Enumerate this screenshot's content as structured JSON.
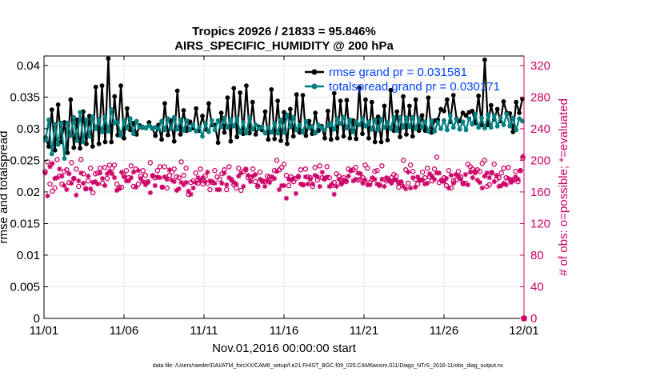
{
  "chart_data": {
    "type": "line",
    "title": "Tropics 20926 / 21833 = 95.846%",
    "subtitle": "AIRS_SPECIFIC_HUMIDITY @ 200 hPa",
    "xlabel": "Nov.01,2016 00:00:00 start",
    "ylabel": "rmse and totalspread",
    "ylabel_right": "# of obs: o=possible; *=evaluated",
    "footnote": "data file: /Users/raeder/DAI/ATM_forcXX/CAM6_setup/f.e21.FHIST_BGC.f09_025.CAM6assim.011/Diags_NTrS_2016-11/obs_diag_output.nc",
    "xlim": [
      0,
      30
    ],
    "ylim": [
      0,
      0.0415
    ],
    "ylim_right": [
      0,
      332
    ],
    "xticks": [
      0,
      5,
      10,
      15,
      20,
      25,
      30
    ],
    "xtick_labels": [
      "11/01",
      "11/06",
      "11/11",
      "11/16",
      "11/21",
      "11/26",
      "12/01"
    ],
    "yticks": [
      0,
      0.005,
      0.01,
      0.015,
      0.02,
      0.025,
      0.03,
      0.035,
      0.04
    ],
    "ytick_labels": [
      "0",
      "0.005",
      "0.01",
      "0.015",
      "0.02",
      "0.025",
      "0.03",
      "0.035",
      "0.04"
    ],
    "yticks_right": [
      0,
      40,
      80,
      120,
      160,
      200,
      240,
      280,
      320
    ],
    "ytick_labels_right": [
      "0",
      "40",
      "80",
      "120",
      "160",
      "200",
      "240",
      "280",
      "320"
    ],
    "legend_position": "top-right",
    "colors": {
      "rmse": "#000000",
      "totalspread": "#008080",
      "obs": "#cc0066",
      "legend_text": "#0044ff"
    },
    "series": [
      {
        "name": "rmse grand pr = 0.031581",
        "axis": "left",
        "style": "line-dot",
        "values": [
          0.0286,
          0.0272,
          0.033,
          0.0266,
          0.0338,
          0.0279,
          0.031,
          0.0262,
          0.0346,
          0.027,
          0.0314,
          0.0269,
          0.0327,
          0.0276,
          0.032,
          0.0272,
          0.0366,
          0.0276,
          0.0368,
          0.0279,
          0.0411,
          0.0279,
          0.0351,
          0.029,
          0.0368,
          0.0285,
          0.0332,
          0.0298,
          0.0309,
          0.0291,
          0.0305,
          0.0302,
          0.0301,
          0.031,
          0.0301,
          0.0289,
          0.0306,
          0.0283,
          0.034,
          0.029,
          0.0313,
          0.028,
          0.036,
          0.0291,
          0.0329,
          0.0297,
          0.0311,
          0.0301,
          0.0332,
          0.0297,
          0.032,
          0.0299,
          0.034,
          0.0306,
          0.0306,
          0.0278,
          0.0325,
          0.0294,
          0.0349,
          0.028,
          0.0364,
          0.0287,
          0.0357,
          0.0292,
          0.0368,
          0.0293,
          0.0342,
          0.0291,
          0.0303,
          0.0298,
          0.0327,
          0.0283,
          0.0362,
          0.0284,
          0.0344,
          0.0281,
          0.0326,
          0.0276,
          0.0331,
          0.0288,
          0.0354,
          0.0294,
          0.0353,
          0.0289,
          0.0312,
          0.0292,
          0.0325,
          0.0297,
          0.0304,
          0.0285,
          0.0328,
          0.0283,
          0.0356,
          0.0285,
          0.0344,
          0.0288,
          0.0345,
          0.0285,
          0.0313,
          0.0284,
          0.0365,
          0.0292,
          0.0346,
          0.0285,
          0.0342,
          0.0279,
          0.0319,
          0.0279,
          0.0336,
          0.0282,
          0.0361,
          0.0297,
          0.0327,
          0.0287,
          0.0351,
          0.0291,
          0.0336,
          0.0288,
          0.0346,
          0.0297,
          0.0321,
          0.0297,
          0.0349,
          0.0294,
          0.0313,
          0.0314,
          0.0331,
          0.0328,
          0.0346,
          0.0311,
          0.0353,
          0.0316,
          0.0312,
          0.0325,
          0.0321,
          0.0326,
          0.0328,
          0.0309,
          0.0352,
          0.0306,
          0.0409,
          0.0306,
          0.0337,
          0.0315,
          0.0331,
          0.0312,
          0.0343,
          0.0325,
          0.0324,
          0.0295,
          0.0342,
          0.0325,
          0.0347
        ]
      },
      {
        "name": "totalspread grand pr = 0.030171",
        "axis": "left",
        "style": "line-dot",
        "values": [
          0.0282,
          0.0314,
          0.026,
          0.0307,
          0.0275,
          0.0309,
          0.0253,
          0.0309,
          0.0289,
          0.0318,
          0.0281,
          0.0326,
          0.0279,
          0.0314,
          0.0288,
          0.0319,
          0.03,
          0.0314,
          0.0295,
          0.0319,
          0.0296,
          0.033,
          0.0309,
          0.031,
          0.0289,
          0.0313,
          0.0301,
          0.0316,
          0.0292,
          0.0312,
          0.0302,
          0.0303,
          0.0301,
          0.0305,
          0.03,
          0.0302,
          0.0299,
          0.0312,
          0.0298,
          0.0316,
          0.03,
          0.0318,
          0.0299,
          0.0314,
          0.0297,
          0.0313,
          0.0298,
          0.0306,
          0.0296,
          0.0303,
          0.0288,
          0.0308,
          0.0295,
          0.0313,
          0.0298,
          0.0313,
          0.0303,
          0.0317,
          0.0302,
          0.0314,
          0.0304,
          0.0316,
          0.0294,
          0.031,
          0.0293,
          0.0318,
          0.0299,
          0.0306,
          0.03,
          0.0303,
          0.0293,
          0.0302,
          0.0294,
          0.0308,
          0.0293,
          0.0314,
          0.0294,
          0.0322,
          0.0303,
          0.0318,
          0.0298,
          0.0306,
          0.0294,
          0.0312,
          0.0301,
          0.0304,
          0.0293,
          0.0306,
          0.0302,
          0.0298,
          0.0305,
          0.0308,
          0.0299,
          0.0316,
          0.0308,
          0.0318,
          0.0301,
          0.0314,
          0.0295,
          0.0311,
          0.0306,
          0.0316,
          0.0304,
          0.0311,
          0.0299,
          0.0314,
          0.0298,
          0.0315,
          0.0302,
          0.031,
          0.03,
          0.0318,
          0.0297,
          0.0318,
          0.0302,
          0.0317,
          0.0303,
          0.0318,
          0.03,
          0.0316,
          0.0302,
          0.0311,
          0.0296,
          0.0313,
          0.0296,
          0.031,
          0.03,
          0.0313,
          0.0298,
          0.0321,
          0.0302,
          0.0315,
          0.0299,
          0.0311,
          0.0298,
          0.0316,
          0.0307,
          0.0323,
          0.0302,
          0.0317,
          0.0301,
          0.0322,
          0.0302,
          0.0321,
          0.0304,
          0.0317,
          0.0306,
          0.0323,
          0.0304,
          0.0317,
          0.0298,
          0.0316,
          0.0312
        ]
      },
      {
        "name": "possible",
        "axis": "right",
        "style": "circle",
        "values": [
          186,
          198,
          170,
          161,
          165,
          201,
          180,
          170,
          186,
          188,
          172,
          197,
          177,
          189,
          167,
          201,
          183,
          164,
          174,
          190,
          159,
          183,
          184,
          190,
          171,
          191,
          177,
          194,
          190,
          194,
          170,
          166,
          166,
          181,
          187,
          178,
          193,
          167,
          189,
          170,
          180,
          187,
          181,
          173,
          197,
          180,
          178,
          187,
          192,
          166,
          192,
          165,
          181,
          185,
          189,
          179,
          178,
          198,
          181,
          190,
          157,
          172,
          174,
          184,
          171,
          189,
          170,
          180,
          171,
          163,
          172,
          187,
          179,
          176,
          183,
          188,
          163,
          192,
          176,
          169,
          165,
          190,
          162,
          186,
          188,
          178,
          178,
          189,
          173,
          167,
          185,
          174,
          173,
          180,
          179,
          177,
          187,
          200,
          188,
          191,
          195,
          181,
          168,
          179,
          173,
          177,
          179,
          188,
          169,
          189,
          179,
          178,
          167,
          191,
          175,
          193,
          178,
          177,
          192,
          178,
          168,
          172,
          183,
          180,
          170,
          178,
          173,
          189,
          187,
          188,
          191,
          175,
          176,
          178,
          194,
          190,
          172,
          176,
          186,
          187,
          169,
          193,
          176,
          174,
          175,
          178,
          182,
          180,
          166,
          172,
          200,
          188,
          171,
          194,
          186,
          176,
          170,
          175,
          185,
          178,
          190,
          179,
          174,
          189,
          204,
          172,
          175,
          178,
          168,
          187,
          165,
          174,
          175,
          186,
          179,
          171,
          171,
          195,
          192,
          189,
          186,
          188,
          186,
          196,
          200,
          167,
          169,
          184,
          195,
          176,
          178,
          184,
          190,
          178,
          191,
          175,
          176,
          186,
          173,
          187,
          203
        ]
      },
      {
        "name": "evaluated",
        "axis": "right",
        "style": "asterisk",
        "values": [
          184,
          155,
          192,
          196,
          177,
          178,
          189,
          180,
          168,
          163,
          183,
          171,
          177,
          156,
          174,
          184,
          171,
          164,
          180,
          164,
          172,
          173,
          170,
          184,
          177,
          168,
          183,
          186,
          183,
          178,
          162,
          164,
          185,
          179,
          174,
          174,
          178,
          185,
          166,
          187,
          177,
          173,
          169,
          172,
          159,
          181,
          168,
          179,
          178,
          166,
          179,
          176,
          188,
          175,
          173,
          162,
          164,
          172,
          169,
          172,
          161,
          157,
          165,
          172,
          178,
          174,
          178,
          173,
          185,
          174,
          173,
          171,
          163,
          163,
          171,
          184,
          169,
          178,
          175,
          172,
          170,
          180,
          184,
          167,
          189,
          181,
          173,
          180,
          182,
          168,
          176,
          173,
          167,
          174,
          172,
          179,
          177,
          186,
          163,
          168,
          168,
          152,
          176,
          175,
          177,
          158,
          180,
          170,
          169,
          179,
          170,
          176,
          170,
          181,
          179,
          167,
          185,
          176,
          179,
          167,
          170,
          157,
          167,
          176,
          171,
          175,
          174,
          180,
          187,
          174,
          176,
          184,
          183,
          171,
          175,
          169,
          169,
          178,
          176,
          170,
          168,
          176,
          167,
          178,
          175,
          171,
          175,
          175,
          171,
          173,
          167,
          164,
          185,
          165,
          178,
          166,
          179,
          175,
          175,
          170,
          171,
          183,
          180,
          176,
          184,
          184,
          174,
          173,
          177,
          165,
          181,
          171,
          182,
          180,
          176,
          170,
          182,
          169,
          185,
          178,
          184,
          175,
          172,
          165,
          180,
          184,
          178,
          185,
          173,
          181,
          167,
          168,
          171,
          169,
          177,
          172,
          174,
          179,
          176,
          187,
          205
        ]
      }
    ]
  }
}
